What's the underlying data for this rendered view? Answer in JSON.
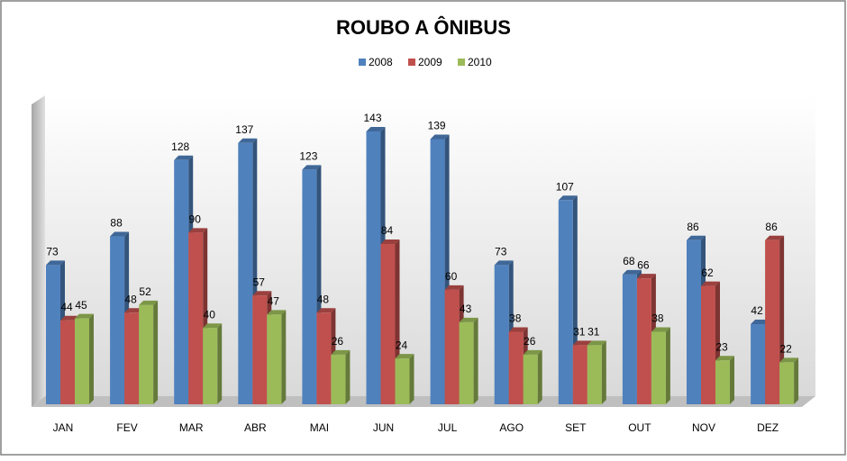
{
  "chart_data": {
    "type": "bar",
    "title": "ROUBO A ÔNIBUS",
    "categories": [
      "JAN",
      "FEV",
      "MAR",
      "ABR",
      "MAI",
      "JUN",
      "JUL",
      "AGO",
      "SET",
      "OUT",
      "NOV",
      "DEZ"
    ],
    "series": [
      {
        "name": "2008",
        "color": "#4f81bd",
        "values": [
          73,
          88,
          128,
          137,
          123,
          143,
          139,
          73,
          107,
          68,
          86,
          42
        ]
      },
      {
        "name": "2009",
        "color": "#c0504d",
        "values": [
          44,
          48,
          90,
          57,
          48,
          84,
          60,
          38,
          31,
          66,
          62,
          86
        ]
      },
      {
        "name": "2010",
        "color": "#9bbb59",
        "values": [
          45,
          52,
          40,
          47,
          26,
          24,
          43,
          26,
          31,
          38,
          23,
          22
        ]
      }
    ],
    "ylim": [
      0,
      160
    ]
  }
}
